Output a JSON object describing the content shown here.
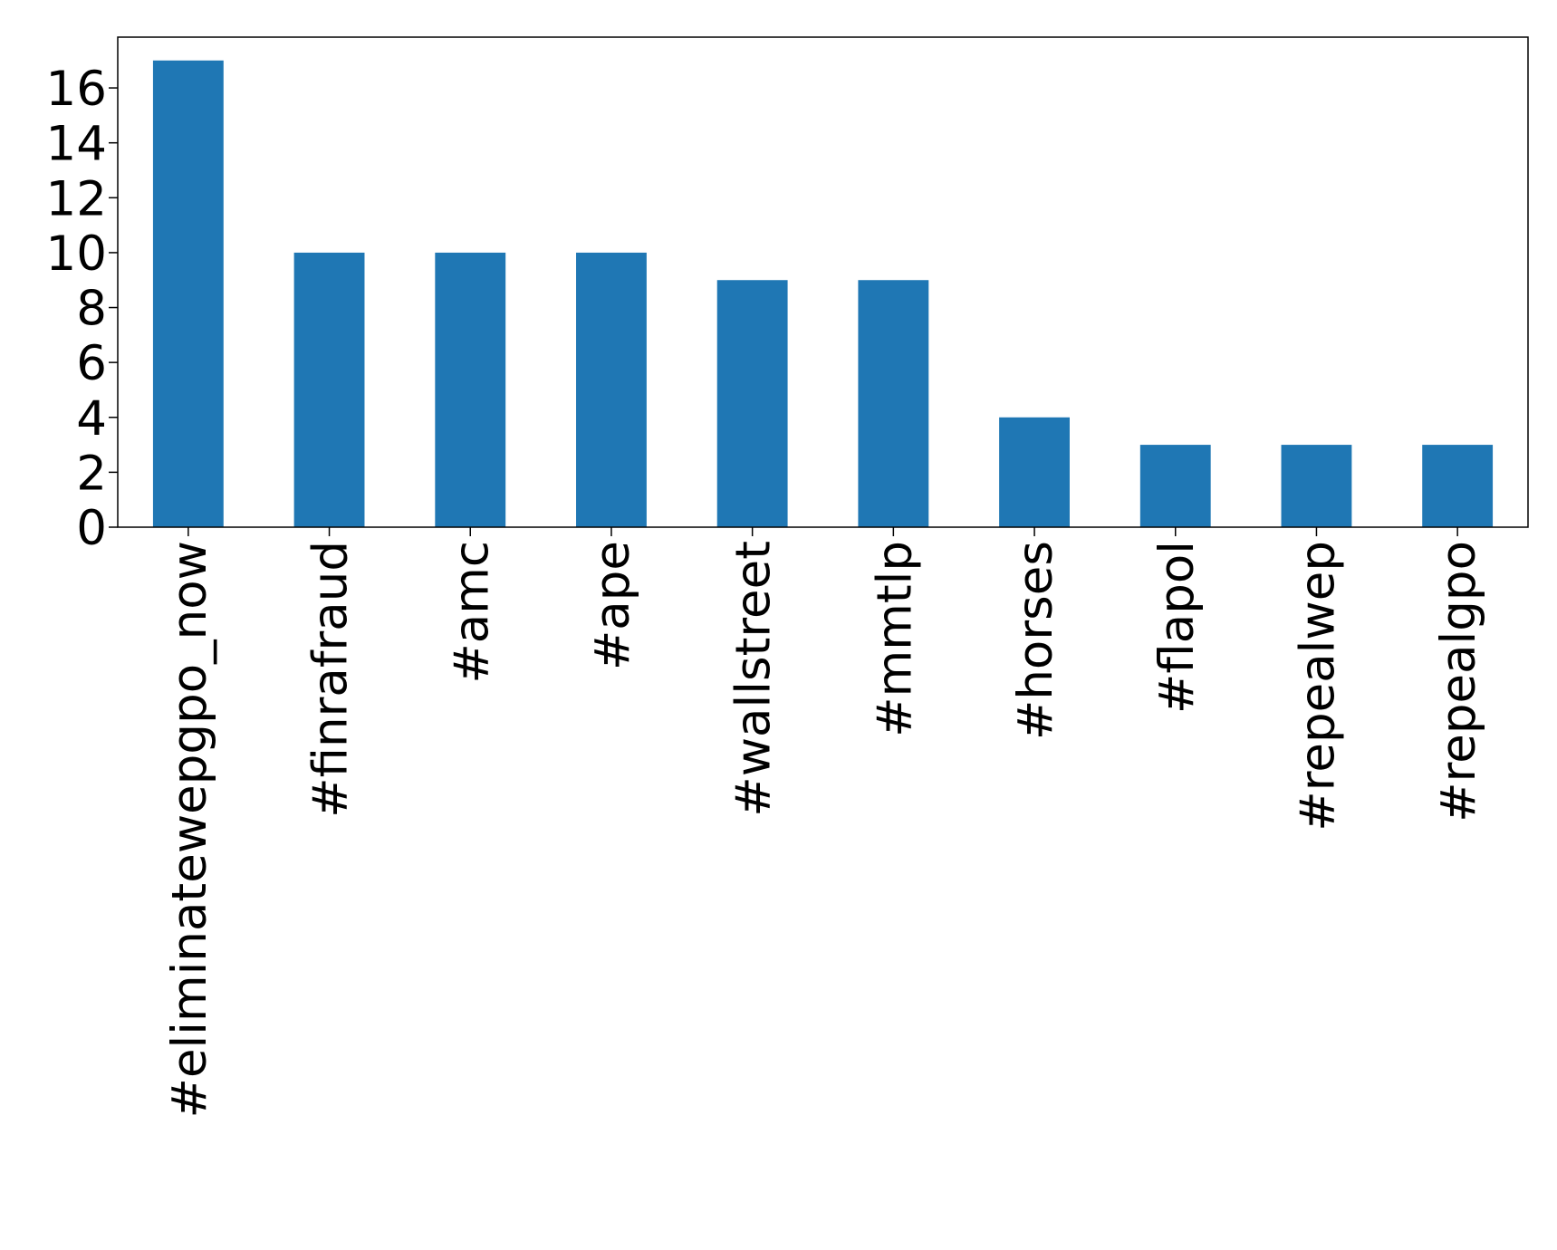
{
  "chart_data": {
    "type": "bar",
    "categories": [
      "#eliminatewepgpo_now",
      "#finrafraud",
      "#amc",
      "#ape",
      "#wallstreet",
      "#mmtlp",
      "#horses",
      "#flapol",
      "#repealwep",
      "#repealgpo"
    ],
    "values": [
      17,
      10,
      10,
      10,
      9,
      9,
      4,
      3,
      3,
      3
    ],
    "color": "#1f77b4",
    "ylim": [
      0,
      17.85
    ],
    "yticks": [
      0,
      2,
      4,
      6,
      8,
      10,
      12,
      14,
      16
    ],
    "grid": false
  }
}
